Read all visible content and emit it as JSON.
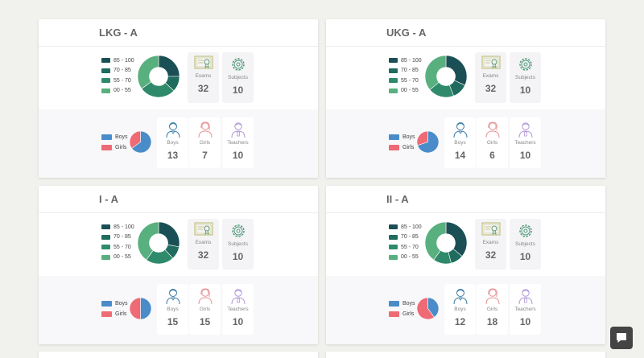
{
  "colors": {
    "band_85_100": "#1b4f56",
    "band_70_85": "#1f6b5e",
    "band_55_70": "#2f8a6b",
    "band_00_55": "#58b07f",
    "boys": "#4a8cc9",
    "girls": "#ee6a75"
  },
  "icons": {
    "exams": "certificate-icon",
    "subjects": "gear-icon",
    "boys": "boy-icon",
    "girls": "girl-icon",
    "teachers": "teacher-icon",
    "chat": "chat-bubble-icon"
  },
  "marks_legend": [
    "85 - 100",
    "70 - 85",
    "55 - 70",
    "00 - 55"
  ],
  "gender_legend": [
    "Boys",
    "Girls"
  ],
  "labels": {
    "exams": "Exams",
    "subjects": "Subjects",
    "boys": "Boys",
    "girls": "Girls",
    "teachers": "Teachers"
  },
  "classes": [
    {
      "title": "LKG - A",
      "exams": "32",
      "subjects": "10",
      "boys": "13",
      "girls": "7",
      "teachers": "10",
      "chart_data": [
        {
          "type": "pie",
          "variant": "donut",
          "categories": [
            "85 - 100",
            "70 - 85",
            "55 - 70",
            "00 - 55"
          ],
          "values": [
            25,
            12,
            28,
            35
          ]
        },
        {
          "type": "pie",
          "categories": [
            "Boys",
            "Girls"
          ],
          "values": [
            13,
            7
          ]
        }
      ]
    },
    {
      "title": "UKG - A",
      "exams": "32",
      "subjects": "10",
      "boys": "14",
      "girls": "6",
      "teachers": "10",
      "chart_data": [
        {
          "type": "pie",
          "variant": "donut",
          "categories": [
            "85 - 100",
            "70 - 85",
            "55 - 70",
            "00 - 55"
          ],
          "values": [
            32,
            12,
            20,
            36
          ]
        },
        {
          "type": "pie",
          "categories": [
            "Boys",
            "Girls"
          ],
          "values": [
            14,
            6
          ]
        }
      ]
    },
    {
      "title": "I - A",
      "exams": "32",
      "subjects": "10",
      "boys": "15",
      "girls": "15",
      "teachers": "10",
      "chart_data": [
        {
          "type": "pie",
          "variant": "donut",
          "categories": [
            "85 - 100",
            "70 - 85",
            "55 - 70",
            "00 - 55"
          ],
          "values": [
            28,
            10,
            22,
            40
          ]
        },
        {
          "type": "pie",
          "categories": [
            "Boys",
            "Girls"
          ],
          "values": [
            15,
            15
          ]
        }
      ]
    },
    {
      "title": "II - A",
      "exams": "32",
      "subjects": "10",
      "boys": "12",
      "girls": "18",
      "teachers": "10",
      "chart_data": [
        {
          "type": "pie",
          "variant": "donut",
          "categories": [
            "85 - 100",
            "70 - 85",
            "55 - 70",
            "00 - 55"
          ],
          "values": [
            36,
            10,
            14,
            40
          ]
        },
        {
          "type": "pie",
          "categories": [
            "Boys",
            "Girls"
          ],
          "values": [
            12,
            18
          ]
        }
      ]
    }
  ]
}
